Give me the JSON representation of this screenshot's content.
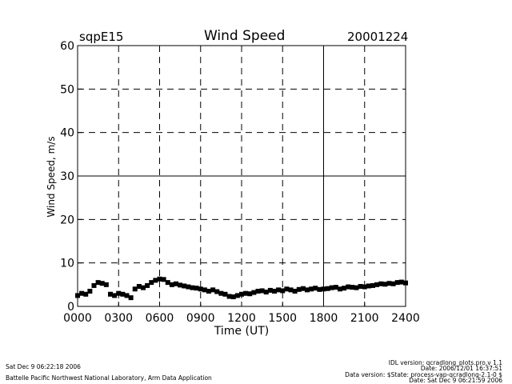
{
  "header": {
    "site": "sqpE15",
    "title": "Wind Speed",
    "date": "20001224"
  },
  "footer": {
    "timestamp": "Sat Dec  9 06:22:18 2006",
    "organization": "Battelle Pacific Northwest National Laboratory, Arm Data Application",
    "idl_version": "IDL version: qcradlong_plots.pro,v 1.1",
    "idl_date": "Date: 2006/12/01 16:37:51",
    "data_version": "Data version: $State: process-vap-qcradlong-2.1-0 $",
    "data_date": "Date: Sat Dec  9 06:21:59 2006"
  },
  "chart_data": {
    "type": "scatter",
    "title": "Wind Speed",
    "xlabel": "Time (UT)",
    "ylabel": "Wind Speed, m/s",
    "xlim": [
      0,
      2400
    ],
    "ylim": [
      0,
      60
    ],
    "x_ticks": [
      0,
      300,
      600,
      900,
      1200,
      1500,
      1800,
      2100,
      2400
    ],
    "x_tick_labels": [
      "0000",
      "0300",
      "0600",
      "0900",
      "1200",
      "1500",
      "1800",
      "2100",
      "2400"
    ],
    "y_ticks": [
      0,
      10,
      20,
      30,
      40,
      50,
      60
    ],
    "y_tick_labels": [
      "0",
      "10",
      "20",
      "30",
      "40",
      "50",
      "60"
    ],
    "grid": true,
    "grid_style": "dashed",
    "solid_grid_x": [
      1800
    ],
    "solid_grid_y": [
      30
    ],
    "marker_color": "#000000",
    "series": [
      {
        "x": [
          0,
          30,
          60,
          90,
          120,
          150,
          180,
          210,
          240,
          270,
          300,
          330,
          360,
          390,
          420,
          450,
          480,
          510,
          540,
          570,
          600,
          630,
          660,
          690,
          720,
          750,
          780,
          810,
          840,
          870,
          900,
          930,
          960,
          990,
          1020,
          1050,
          1080,
          1110,
          1140,
          1170,
          1200,
          1230,
          1260,
          1290,
          1320,
          1350,
          1380,
          1410,
          1440,
          1470,
          1500,
          1530,
          1560,
          1590,
          1620,
          1650,
          1680,
          1710,
          1740,
          1770,
          1800,
          1830,
          1860,
          1890,
          1920,
          1950,
          1980,
          2010,
          2040,
          2070,
          2100,
          2130,
          2160,
          2190,
          2220,
          2250,
          2280,
          2310,
          2340,
          2370,
          2400
        ],
        "values": [
          2.5,
          3.0,
          2.8,
          3.5,
          4.8,
          5.5,
          5.3,
          5.0,
          2.8,
          2.5,
          3.0,
          2.8,
          2.5,
          2.0,
          4.0,
          4.6,
          4.3,
          4.8,
          5.5,
          6.0,
          6.3,
          6.2,
          5.5,
          5.0,
          5.2,
          4.9,
          4.7,
          4.5,
          4.3,
          4.2,
          4.0,
          3.8,
          3.5,
          3.8,
          3.4,
          3.0,
          2.8,
          2.3,
          2.2,
          2.5,
          2.8,
          3.0,
          2.9,
          3.2,
          3.5,
          3.6,
          3.3,
          3.7,
          3.5,
          3.8,
          3.6,
          4.0,
          3.8,
          3.5,
          3.9,
          4.1,
          3.8,
          4.0,
          4.2,
          3.9,
          4.0,
          4.1,
          4.3,
          4.4,
          4.0,
          4.2,
          4.5,
          4.4,
          4.3,
          4.6,
          4.5,
          4.7,
          4.8,
          5.0,
          5.2,
          5.1,
          5.3,
          5.2,
          5.5,
          5.6,
          5.4
        ]
      }
    ]
  }
}
